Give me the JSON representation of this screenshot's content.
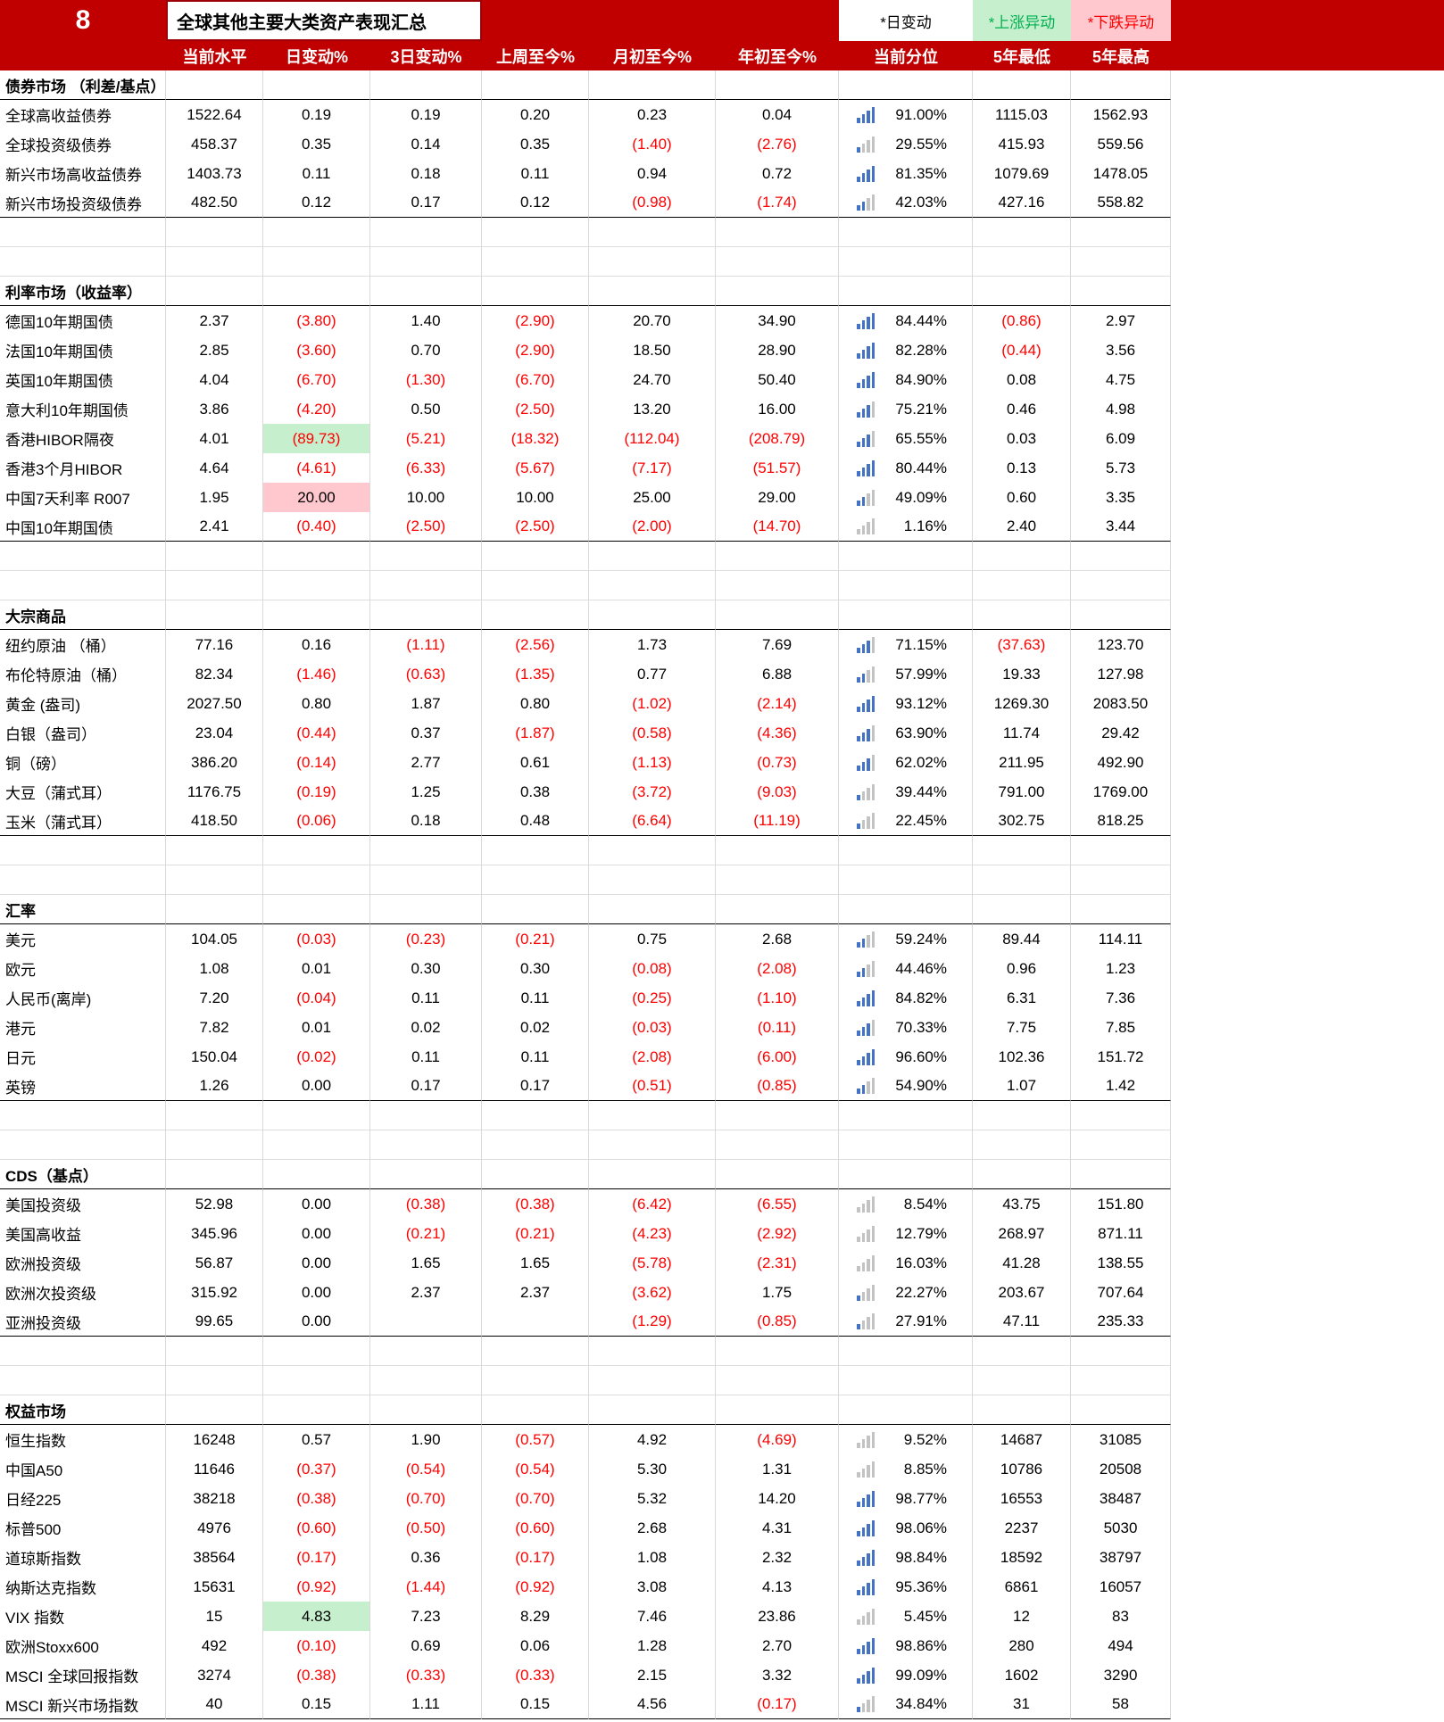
{
  "banner": {
    "number": "8",
    "title": "全球其他主要大类资产表现汇总",
    "legend_day": "*日变动",
    "legend_up": "*上涨异动",
    "legend_down": "*下跌异动"
  },
  "columns": [
    "当前水平",
    "日变动%",
    "3日变动%",
    "上周至今%",
    "月初至今%",
    "年初至今%",
    "当前分位",
    "5年最低",
    "5年最高"
  ],
  "colors": {
    "banner_red": "#C00000",
    "negative_red": "#FF0000",
    "highlight_green": "#C6EFCE",
    "highlight_pink": "#FFC7CE",
    "legend_green_text": "#00B050",
    "percentile_icon_blue": "#4472C4",
    "percentile_icon_gray": "#C3C3C3",
    "grid_line": "#D9D9D9"
  },
  "sections": [
    {
      "title": "债券市场 （利差/基点）",
      "rows": [
        {
          "label": "全球高收益债券",
          "values": [
            "1522.64",
            "0.19",
            "0.19",
            "0.20",
            "0.23",
            "0.04"
          ],
          "percentile": "91.00%",
          "pct": 91.0,
          "low": "1115.03",
          "high": "1562.93"
        },
        {
          "label": "全球投资级债券",
          "values": [
            "458.37",
            "0.35",
            "0.14",
            "0.35",
            "(1.40)",
            "(2.76)"
          ],
          "percentile": "29.55%",
          "pct": 29.55,
          "low": "415.93",
          "high": "559.56"
        },
        {
          "label": "新兴市场高收益债券",
          "values": [
            "1403.73",
            "0.11",
            "0.18",
            "0.11",
            "0.94",
            "0.72"
          ],
          "percentile": "81.35%",
          "pct": 81.35,
          "low": "1079.69",
          "high": "1478.05"
        },
        {
          "label": "新兴市场投资级债券",
          "values": [
            "482.50",
            "0.12",
            "0.17",
            "0.12",
            "(0.98)",
            "(1.74)"
          ],
          "percentile": "42.03%",
          "pct": 42.03,
          "low": "427.16",
          "high": "558.82"
        }
      ]
    },
    {
      "title": "利率市场（收益率）",
      "rows": [
        {
          "label": "德国10年期国债",
          "values": [
            "2.37",
            "(3.80)",
            "1.40",
            "(2.90)",
            "20.70",
            "34.90"
          ],
          "percentile": "84.44%",
          "pct": 84.44,
          "low": "(0.86)",
          "high": "2.97"
        },
        {
          "label": "法国10年期国债",
          "values": [
            "2.85",
            "(3.60)",
            "0.70",
            "(2.90)",
            "18.50",
            "28.90"
          ],
          "percentile": "82.28%",
          "pct": 82.28,
          "low": "(0.44)",
          "high": "3.56"
        },
        {
          "label": "英国10年期国债",
          "values": [
            "4.04",
            "(6.70)",
            "(1.30)",
            "(6.70)",
            "24.70",
            "50.40"
          ],
          "percentile": "84.90%",
          "pct": 84.9,
          "low": "0.08",
          "high": "4.75"
        },
        {
          "label": "意大利10年期国债",
          "values": [
            "3.86",
            "(4.20)",
            "0.50",
            "(2.50)",
            "13.20",
            "16.00"
          ],
          "percentile": "75.21%",
          "pct": 75.21,
          "low": "0.46",
          "high": "4.98"
        },
        {
          "label": "香港HIBOR隔夜",
          "values": [
            "4.01",
            "(89.73)",
            "(5.21)",
            "(18.32)",
            "(112.04)",
            "(208.79)"
          ],
          "hl": {
            "1": "green"
          },
          "percentile": "65.55%",
          "pct": 65.55,
          "low": "0.03",
          "high": "6.09"
        },
        {
          "label": "香港3个月HIBOR",
          "values": [
            "4.64",
            "(4.61)",
            "(6.33)",
            "(5.67)",
            "(7.17)",
            "(51.57)"
          ],
          "percentile": "80.44%",
          "pct": 80.44,
          "low": "0.13",
          "high": "5.73"
        },
        {
          "label": "中国7天利率 R007",
          "values": [
            "1.95",
            "20.00",
            "10.00",
            "10.00",
            "25.00",
            "29.00"
          ],
          "hl": {
            "1": "pink"
          },
          "percentile": "49.09%",
          "pct": 49.09,
          "low": "0.60",
          "high": "3.35"
        },
        {
          "label": "中国10年期国债",
          "values": [
            "2.41",
            "(0.40)",
            "(2.50)",
            "(2.50)",
            "(2.00)",
            "(14.70)"
          ],
          "percentile": "1.16%",
          "pct": 1.16,
          "low": "2.40",
          "high": "3.44"
        }
      ]
    },
    {
      "title": "大宗商品",
      "rows": [
        {
          "label": "纽约原油 （桶）",
          "values": [
            "77.16",
            "0.16",
            "(1.11)",
            "(2.56)",
            "1.73",
            "7.69"
          ],
          "percentile": "71.15%",
          "pct": 71.15,
          "low": "(37.63)",
          "high": "123.70"
        },
        {
          "label": "布伦特原油（桶）",
          "values": [
            "82.34",
            "(1.46)",
            "(0.63)",
            "(1.35)",
            "0.77",
            "6.88"
          ],
          "percentile": "57.99%",
          "pct": 57.99,
          "low": "19.33",
          "high": "127.98"
        },
        {
          "label": "黄金 (盎司)",
          "values": [
            "2027.50",
            "0.80",
            "1.87",
            "0.80",
            "(1.02)",
            "(2.14)"
          ],
          "percentile": "93.12%",
          "pct": 93.12,
          "low": "1269.30",
          "high": "2083.50"
        },
        {
          "label": "白银（盎司）",
          "values": [
            "23.04",
            "(0.44)",
            "0.37",
            "(1.87)",
            "(0.58)",
            "(4.36)"
          ],
          "percentile": "63.90%",
          "pct": 63.9,
          "low": "11.74",
          "high": "29.42"
        },
        {
          "label": "铜（磅）",
          "values": [
            "386.20",
            "(0.14)",
            "2.77",
            "0.61",
            "(1.13)",
            "(0.73)"
          ],
          "percentile": "62.02%",
          "pct": 62.02,
          "low": "211.95",
          "high": "492.90"
        },
        {
          "label": "大豆（蒲式耳）",
          "values": [
            "1176.75",
            "(0.19)",
            "1.25",
            "0.38",
            "(3.72)",
            "(9.03)"
          ],
          "percentile": "39.44%",
          "pct": 39.44,
          "low": "791.00",
          "high": "1769.00"
        },
        {
          "label": "玉米（蒲式耳）",
          "values": [
            "418.50",
            "(0.06)",
            "0.18",
            "0.48",
            "(6.64)",
            "(11.19)"
          ],
          "percentile": "22.45%",
          "pct": 22.45,
          "low": "302.75",
          "high": "818.25"
        }
      ]
    },
    {
      "title": "汇率",
      "rows": [
        {
          "label": "美元",
          "values": [
            "104.05",
            "(0.03)",
            "(0.23)",
            "(0.21)",
            "0.75",
            "2.68"
          ],
          "percentile": "59.24%",
          "pct": 59.24,
          "low": "89.44",
          "high": "114.11"
        },
        {
          "label": "欧元",
          "values": [
            "1.08",
            "0.01",
            "0.30",
            "0.30",
            "(0.08)",
            "(2.08)"
          ],
          "percentile": "44.46%",
          "pct": 44.46,
          "low": "0.96",
          "high": "1.23"
        },
        {
          "label": "人民币(离岸)",
          "values": [
            "7.20",
            "(0.04)",
            "0.11",
            "0.11",
            "(0.25)",
            "(1.10)"
          ],
          "percentile": "84.82%",
          "pct": 84.82,
          "low": "6.31",
          "high": "7.36"
        },
        {
          "label": "港元",
          "values": [
            "7.82",
            "0.01",
            "0.02",
            "0.02",
            "(0.03)",
            "(0.11)"
          ],
          "percentile": "70.33%",
          "pct": 70.33,
          "low": "7.75",
          "high": "7.85"
        },
        {
          "label": "日元",
          "values": [
            "150.04",
            "(0.02)",
            "0.11",
            "0.11",
            "(2.08)",
            "(6.00)"
          ],
          "percentile": "96.60%",
          "pct": 96.6,
          "low": "102.36",
          "high": "151.72"
        },
        {
          "label": "英镑",
          "values": [
            "1.26",
            "0.00",
            "0.17",
            "0.17",
            "(0.51)",
            "(0.85)"
          ],
          "percentile": "54.90%",
          "pct": 54.9,
          "low": "1.07",
          "high": "1.42"
        }
      ]
    },
    {
      "title": "CDS（基点）",
      "rows": [
        {
          "label": "美国投资级",
          "values": [
            "52.98",
            "0.00",
            "(0.38)",
            "(0.38)",
            "(6.42)",
            "(6.55)"
          ],
          "percentile": "8.54%",
          "pct": 8.54,
          "low": "43.75",
          "high": "151.80"
        },
        {
          "label": "美国高收益",
          "values": [
            "345.96",
            "0.00",
            "(0.21)",
            "(0.21)",
            "(4.23)",
            "(2.92)"
          ],
          "percentile": "12.79%",
          "pct": 12.79,
          "low": "268.97",
          "high": "871.11"
        },
        {
          "label": "欧洲投资级",
          "values": [
            "56.87",
            "0.00",
            "1.65",
            "1.65",
            "(5.78)",
            "(2.31)"
          ],
          "percentile": "16.03%",
          "pct": 16.03,
          "low": "41.28",
          "high": "138.55"
        },
        {
          "label": "欧洲次投资级",
          "values": [
            "315.92",
            "0.00",
            "2.37",
            "2.37",
            "(3.62)",
            "1.75"
          ],
          "percentile": "22.27%",
          "pct": 22.27,
          "low": "203.67",
          "high": "707.64"
        },
        {
          "label": "亚洲投资级",
          "values": [
            "99.65",
            "0.00",
            "",
            "",
            "(1.29)",
            "(0.85)"
          ],
          "percentile": "27.91%",
          "pct": 27.91,
          "low": "47.11",
          "high": "235.33"
        }
      ]
    },
    {
      "title": "权益市场",
      "rows": [
        {
          "label": "恒生指数",
          "values": [
            "16248",
            "0.57",
            "1.90",
            "(0.57)",
            "4.92",
            "(4.69)"
          ],
          "percentile": "9.52%",
          "pct": 9.52,
          "low": "14687",
          "high": "31085"
        },
        {
          "label": "中国A50",
          "values": [
            "11646",
            "(0.37)",
            "(0.54)",
            "(0.54)",
            "5.30",
            "1.31"
          ],
          "percentile": "8.85%",
          "pct": 8.85,
          "low": "10786",
          "high": "20508"
        },
        {
          "label": "日经225",
          "values": [
            "38218",
            "(0.38)",
            "(0.70)",
            "(0.70)",
            "5.32",
            "14.20"
          ],
          "percentile": "98.77%",
          "pct": 98.77,
          "low": "16553",
          "high": "38487"
        },
        {
          "label": "标普500",
          "values": [
            "4976",
            "(0.60)",
            "(0.50)",
            "(0.60)",
            "2.68",
            "4.31"
          ],
          "percentile": "98.06%",
          "pct": 98.06,
          "low": "2237",
          "high": "5030"
        },
        {
          "label": "道琼斯指数",
          "values": [
            "38564",
            "(0.17)",
            "0.36",
            "(0.17)",
            "1.08",
            "2.32"
          ],
          "percentile": "98.84%",
          "pct": 98.84,
          "low": "18592",
          "high": "38797"
        },
        {
          "label": "纳斯达克指数",
          "values": [
            "15631",
            "(0.92)",
            "(1.44)",
            "(0.92)",
            "3.08",
            "4.13"
          ],
          "percentile": "95.36%",
          "pct": 95.36,
          "low": "6861",
          "high": "16057"
        },
        {
          "label": "VIX 指数",
          "values": [
            "15",
            "4.83",
            "7.23",
            "8.29",
            "7.46",
            "23.86"
          ],
          "hl": {
            "1": "green"
          },
          "percentile": "5.45%",
          "pct": 5.45,
          "low": "12",
          "high": "83"
        },
        {
          "label": "欧洲Stoxx600",
          "values": [
            "492",
            "(0.10)",
            "0.69",
            "0.06",
            "1.28",
            "2.70"
          ],
          "percentile": "98.86%",
          "pct": 98.86,
          "low": "280",
          "high": "494"
        },
        {
          "label": "MSCI 全球回报指数",
          "values": [
            "3274",
            "(0.38)",
            "(0.33)",
            "(0.33)",
            "2.15",
            "3.32"
          ],
          "percentile": "99.09%",
          "pct": 99.09,
          "low": "1602",
          "high": "3290"
        },
        {
          "label": "MSCI 新兴市场指数",
          "values": [
            "40",
            "0.15",
            "1.11",
            "0.15",
            "4.56",
            "(0.17)"
          ],
          "percentile": "34.84%",
          "pct": 34.84,
          "low": "31",
          "high": "58"
        }
      ]
    }
  ]
}
